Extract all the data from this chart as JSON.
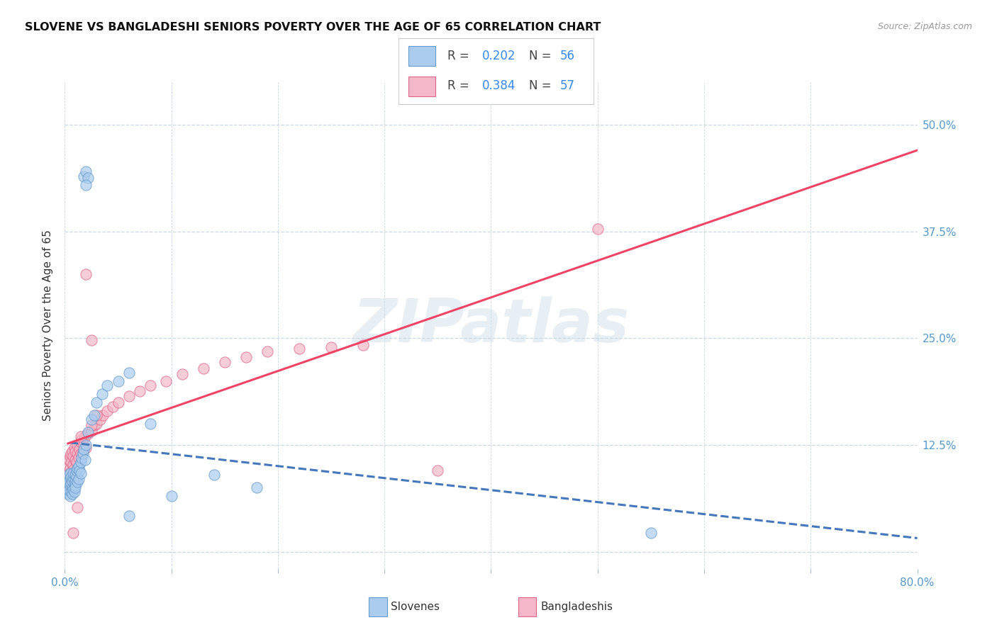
{
  "title": "SLOVENE VS BANGLADESHI SENIORS POVERTY OVER THE AGE OF 65 CORRELATION CHART",
  "source": "Source: ZipAtlas.com",
  "ylabel": "Seniors Poverty Over the Age of 65",
  "xlim": [
    0.0,
    0.8
  ],
  "ylim": [
    -0.02,
    0.55
  ],
  "ytick_positions": [
    0.0,
    0.125,
    0.25,
    0.375,
    0.5
  ],
  "ytick_labels": [
    "",
    "12.5%",
    "25.0%",
    "37.5%",
    "50.0%"
  ],
  "xtick_positions": [
    0.0,
    0.1,
    0.2,
    0.3,
    0.4,
    0.5,
    0.6,
    0.7,
    0.8
  ],
  "xtick_labels": [
    "0.0%",
    "",
    "",
    "",
    "",
    "",
    "",
    "",
    "80.0%"
  ],
  "label_slovene": "Slovenes",
  "label_bangladeshi": "Bangladeshis",
  "color_slovene_fill": "#aaccee",
  "color_slovene_edge": "#6699cc",
  "color_bangladeshi_fill": "#f5b8c8",
  "color_bangladeshi_edge": "#dd6688",
  "color_trend_slovene": "#4477bb",
  "color_trend_bangladeshi": "#ee4466",
  "watermark_text": "ZIPatlas",
  "watermark_color": "#ccdde8",
  "bg_color": "#ffffff",
  "grid_color": "#c8d8e4",
  "axis_label_color": "#5599cc",
  "slovene_x": [
    0.002,
    0.003,
    0.003,
    0.004,
    0.004,
    0.005,
    0.005,
    0.005,
    0.005,
    0.006,
    0.006,
    0.006,
    0.007,
    0.007,
    0.007,
    0.008,
    0.008,
    0.008,
    0.009,
    0.009,
    0.01,
    0.01,
    0.01,
    0.01,
    0.011,
    0.011,
    0.012,
    0.012,
    0.013,
    0.013,
    0.014,
    0.015,
    0.015,
    0.016,
    0.017,
    0.018,
    0.019,
    0.02,
    0.022,
    0.025,
    0.028,
    0.03,
    0.035,
    0.04,
    0.05,
    0.06,
    0.08,
    0.1,
    0.14,
    0.18,
    0.018,
    0.02,
    0.022,
    0.06,
    0.55,
    0.02
  ],
  "slovene_y": [
    0.075,
    0.082,
    0.068,
    0.09,
    0.072,
    0.085,
    0.078,
    0.065,
    0.092,
    0.08,
    0.07,
    0.088,
    0.075,
    0.083,
    0.068,
    0.087,
    0.073,
    0.092,
    0.08,
    0.07,
    0.085,
    0.078,
    0.09,
    0.075,
    0.088,
    0.095,
    0.082,
    0.098,
    0.085,
    0.1,
    0.095,
    0.105,
    0.092,
    0.11,
    0.115,
    0.12,
    0.108,
    0.125,
    0.14,
    0.155,
    0.16,
    0.175,
    0.185,
    0.195,
    0.2,
    0.21,
    0.15,
    0.065,
    0.09,
    0.075,
    0.44,
    0.445,
    0.438,
    0.042,
    0.022,
    0.43
  ],
  "bangladeshi_x": [
    0.003,
    0.004,
    0.004,
    0.005,
    0.005,
    0.006,
    0.006,
    0.007,
    0.007,
    0.008,
    0.008,
    0.009,
    0.009,
    0.01,
    0.01,
    0.011,
    0.012,
    0.012,
    0.013,
    0.014,
    0.015,
    0.015,
    0.016,
    0.017,
    0.018,
    0.019,
    0.02,
    0.022,
    0.025,
    0.028,
    0.03,
    0.033,
    0.036,
    0.04,
    0.045,
    0.05,
    0.06,
    0.07,
    0.08,
    0.095,
    0.11,
    0.13,
    0.15,
    0.17,
    0.19,
    0.22,
    0.25,
    0.28,
    0.35,
    0.5,
    0.02,
    0.025,
    0.015,
    0.03,
    0.025,
    0.012,
    0.008
  ],
  "bangladeshi_y": [
    0.1,
    0.108,
    0.092,
    0.112,
    0.098,
    0.105,
    0.115,
    0.095,
    0.118,
    0.102,
    0.112,
    0.098,
    0.122,
    0.108,
    0.118,
    0.105,
    0.115,
    0.125,
    0.11,
    0.12,
    0.128,
    0.115,
    0.132,
    0.118,
    0.125,
    0.135,
    0.122,
    0.138,
    0.142,
    0.148,
    0.15,
    0.155,
    0.16,
    0.165,
    0.17,
    0.175,
    0.182,
    0.188,
    0.195,
    0.2,
    0.208,
    0.215,
    0.222,
    0.228,
    0.235,
    0.238,
    0.24,
    0.242,
    0.095,
    0.378,
    0.325,
    0.248,
    0.135,
    0.16,
    0.148,
    0.052,
    0.022
  ]
}
